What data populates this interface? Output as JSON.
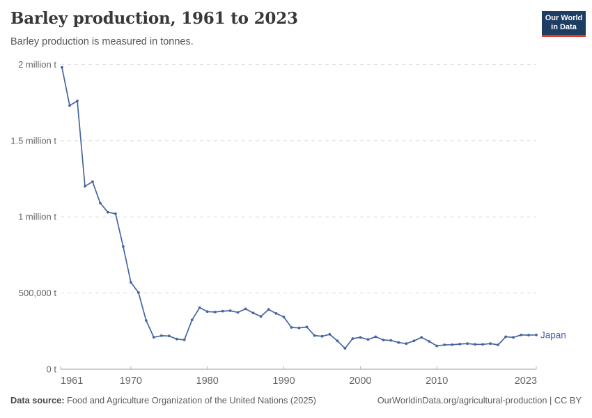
{
  "header": {
    "title": "Barley production, 1961 to 2023",
    "subtitle": "Barley production is measured in tonnes."
  },
  "logo": {
    "line1": "Our World",
    "line2": "in Data",
    "bg_color": "#1d3d63",
    "accent_color": "#dc3e26"
  },
  "chart_data": {
    "type": "line",
    "title": "Barley production, 1961 to 2023",
    "unit": "tonnes",
    "xlabel": "",
    "ylabel": "",
    "xlim": [
      1961,
      2023
    ],
    "ylim": [
      0,
      2000000
    ],
    "grid": "horizontal-dashed",
    "legend_position": "end-of-line-label",
    "x_tick_years": [
      1961,
      1970,
      1980,
      1990,
      2000,
      2010,
      2023
    ],
    "y_ticks": [
      {
        "value": 0,
        "label": "0 t"
      },
      {
        "value": 500000,
        "label": "500,000 t"
      },
      {
        "value": 1000000,
        "label": "1 million t"
      },
      {
        "value": 1500000,
        "label": "1.5 million t"
      },
      {
        "value": 2000000,
        "label": "2 million t"
      }
    ],
    "series": [
      {
        "name": "Japan",
        "color": "#4565a2",
        "x": [
          1961,
          1962,
          1963,
          1964,
          1965,
          1966,
          1967,
          1968,
          1969,
          1970,
          1971,
          1972,
          1973,
          1974,
          1975,
          1976,
          1977,
          1978,
          1979,
          1980,
          1981,
          1982,
          1983,
          1984,
          1985,
          1986,
          1987,
          1988,
          1989,
          1990,
          1991,
          1992,
          1993,
          1994,
          1995,
          1996,
          1997,
          1998,
          1999,
          2000,
          2001,
          2002,
          2003,
          2004,
          2005,
          2006,
          2007,
          2008,
          2009,
          2010,
          2011,
          2012,
          2013,
          2014,
          2015,
          2016,
          2017,
          2018,
          2019,
          2020,
          2021,
          2022,
          2023
        ],
        "values": [
          1980000,
          1730000,
          1760000,
          1200000,
          1230000,
          1090000,
          1030000,
          1020000,
          805000,
          570000,
          503000,
          320000,
          210000,
          220000,
          218000,
          198000,
          193000,
          323000,
          404000,
          378000,
          375000,
          381000,
          384000,
          373000,
          396000,
          369000,
          346000,
          392000,
          366000,
          343000,
          274000,
          271000,
          277000,
          221000,
          216000,
          229000,
          186000,
          137000,
          201000,
          209000,
          195000,
          213000,
          192000,
          189000,
          175000,
          168000,
          186000,
          209000,
          183000,
          153000,
          160000,
          161000,
          165000,
          168000,
          163000,
          163000,
          168000,
          160000,
          213000,
          209000,
          225000,
          224000,
          225000
        ]
      }
    ]
  },
  "footer": {
    "source_label": "Data source:",
    "source_text": " Food and Agriculture Organization of the United Nations (2025)",
    "credit_text": "OurWorldinData.org/agricultural-production | CC BY"
  },
  "colors": {
    "title": "#383838",
    "subtitle": "#565656",
    "axis_line": "#999999",
    "gridline": "#dcdcdc",
    "tick_label": "#666666",
    "footer_text": "#5b5b5b"
  }
}
